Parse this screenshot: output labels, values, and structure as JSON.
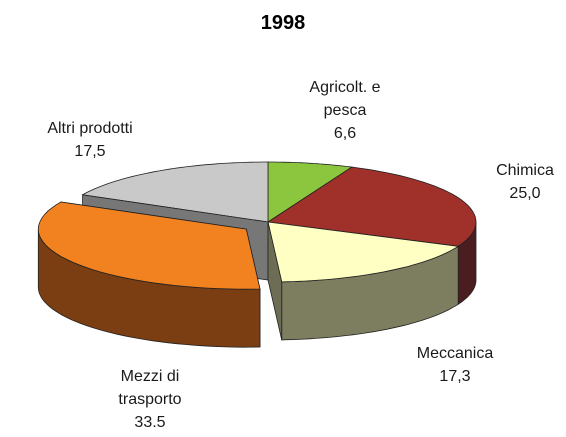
{
  "chart_data": {
    "type": "pie3d",
    "title": "1998",
    "categories": [
      "Agricolt. e pesca",
      "Chimica",
      "Meccanica",
      "Mezzi di trasporto",
      "Altri prodotti"
    ],
    "values": [
      6.6,
      25.0,
      17.3,
      33.5,
      17.5
    ],
    "value_labels": [
      "6,6",
      "25,0",
      "17,3",
      "33.5",
      "17,5"
    ],
    "colors": [
      "#8cc63e",
      "#a0302a",
      "#ffffc4",
      "#f28120",
      "#c9c9c9"
    ],
    "side_colors": [
      "#4d6e1f",
      "#4a1e1e",
      "#7d7d60",
      "#7a3e12",
      "#8b8b8b"
    ],
    "exploded": [
      false,
      false,
      false,
      true,
      false
    ]
  }
}
